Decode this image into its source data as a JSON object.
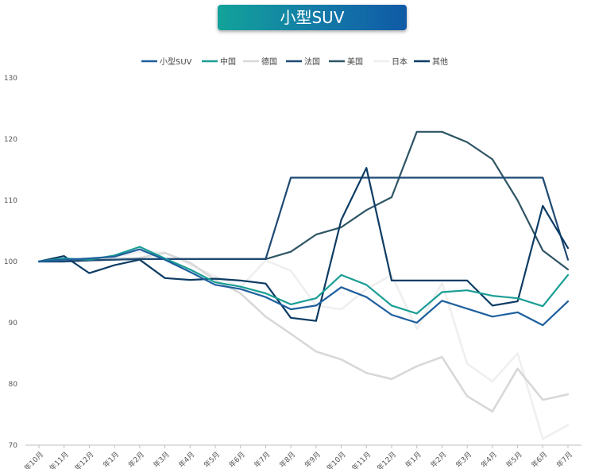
{
  "chart_data": {
    "type": "line",
    "title": "小型SUV",
    "xlabel": "",
    "ylabel": "",
    "ylim": [
      70,
      130
    ],
    "yticks": [
      70,
      80,
      90,
      100,
      110,
      120,
      130
    ],
    "legend_position": "top-center",
    "grid": false,
    "categories": [
      "年10月",
      "年11月",
      "年12月",
      "年1月",
      "年2月",
      "年3月",
      "年4月",
      "年5月",
      "年6月",
      "年7月",
      "年8月",
      "年9月",
      "年10月",
      "年11月",
      "年12月",
      "年1月",
      "年2月",
      "年3月",
      "年4月",
      "年5月",
      "年6月",
      "年7月"
    ],
    "series": [
      {
        "name": "小型SUV",
        "color": "#1f5f9e",
        "width": 2.2,
        "values": [
          100,
          100.3,
          100.5,
          100.8,
          102,
          100.3,
          98.3,
          96.2,
          95.5,
          94.2,
          92.2,
          92.8,
          95.8,
          94.2,
          91.3,
          90,
          93.6,
          92.3,
          91,
          91.7,
          89.6,
          93.5
        ]
      },
      {
        "name": "中国",
        "color": "#1a9e95",
        "width": 2.2,
        "values": [
          100,
          100.5,
          100.3,
          101,
          102.4,
          100.5,
          98.7,
          96.6,
          95.9,
          94.8,
          93,
          94,
          97.8,
          96.2,
          92.8,
          91.5,
          95,
          95.3,
          94.4,
          94,
          92.7,
          97.8
        ]
      },
      {
        "name": "德国",
        "color": "#d8d8d8",
        "width": 2.6,
        "values": [
          100,
          100.2,
          100.2,
          100.5,
          100.6,
          101.4,
          99.8,
          97,
          94.8,
          91,
          88.2,
          85.3,
          84,
          81.8,
          80.8,
          82.9,
          84.4,
          78,
          75.5,
          82.5,
          77.4,
          78.3
        ]
      },
      {
        "name": "法国",
        "color": "#1e4a73",
        "width": 2.2,
        "values": [
          100,
          100,
          100.2,
          100.3,
          100.4,
          100.4,
          100.4,
          100.4,
          100.4,
          100.4,
          113.7,
          113.7,
          113.7,
          113.7,
          113.7,
          113.7,
          113.7,
          113.7,
          113.7,
          113.7,
          113.7,
          100.3
        ]
      },
      {
        "name": "美国",
        "color": "#2f5565",
        "width": 2.2,
        "values": [
          100,
          100,
          100.2,
          100.3,
          100.4,
          100.4,
          100.4,
          100.4,
          100.4,
          100.4,
          101.6,
          104.4,
          105.6,
          108.4,
          110.5,
          121.2,
          121.2,
          119.5,
          116.7,
          110,
          101.8,
          98.7
        ]
      },
      {
        "name": "日本",
        "color": "#efefef",
        "width": 2.6,
        "values": [
          100,
          100.3,
          100.5,
          100.8,
          101.5,
          101.5,
          99.5,
          97.6,
          95.8,
          100.2,
          98.5,
          92.8,
          92.2,
          95.5,
          97.8,
          89,
          96.5,
          83.3,
          80.4,
          85,
          71,
          73.3
        ]
      },
      {
        "name": "其他",
        "color": "#0d3c64",
        "width": 2.2,
        "values": [
          100,
          100.9,
          98.1,
          99.4,
          100.3,
          97.3,
          97,
          97.2,
          96.9,
          96.4,
          90.8,
          90.3,
          106.8,
          115.3,
          96.9,
          96.9,
          96.9,
          96.9,
          92.8,
          93.5,
          109.1,
          102.2
        ]
      }
    ]
  }
}
